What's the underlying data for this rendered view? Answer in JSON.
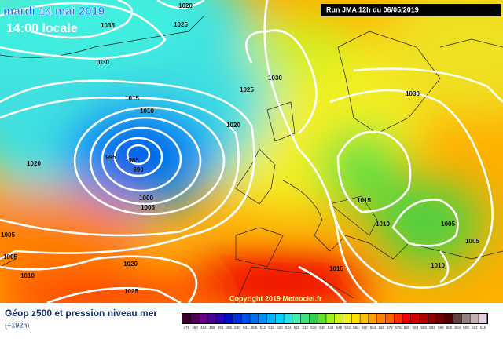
{
  "header": {
    "date": "mardi 14 mai 2019",
    "time": "14:00 locale",
    "run": "Run JMA 12h du 06/05/2019"
  },
  "isobar_labels": [
    "1020",
    "1035",
    "1025",
    "1030",
    "1015",
    "1010",
    "1025",
    "1030",
    "1020",
    "1030",
    "995",
    "985",
    "990",
    "1020",
    "1000",
    "1005",
    "1015",
    "1010",
    "1005",
    "1005",
    "1005",
    "1005",
    "1010",
    "1020",
    "1025",
    "1015",
    "1010"
  ],
  "copyright": "Copyright 2019 Meteociel.fr",
  "legend": {
    "title": "Géop z500 et pression niveau mer",
    "lead": "(+192h)",
    "scale": [
      {
        "value": 476,
        "color": "#3a0030"
      },
      {
        "value": 480,
        "color": "#50005a"
      },
      {
        "value": 484,
        "color": "#6a0088"
      },
      {
        "value": 488,
        "color": "#4b0096"
      },
      {
        "value": 492,
        "color": "#2a00b0"
      },
      {
        "value": 496,
        "color": "#0010c0"
      },
      {
        "value": 500,
        "color": "#0030d8"
      },
      {
        "value": 504,
        "color": "#0050e8"
      },
      {
        "value": 508,
        "color": "#0070f0"
      },
      {
        "value": 512,
        "color": "#0090f8"
      },
      {
        "value": 516,
        "color": "#00b0ff"
      },
      {
        "value": 520,
        "color": "#00d0ff"
      },
      {
        "value": 524,
        "color": "#30e0e0"
      },
      {
        "value": 528,
        "color": "#40f0b0"
      },
      {
        "value": 532,
        "color": "#40e080"
      },
      {
        "value": 536,
        "color": "#30d050"
      },
      {
        "value": 540,
        "color": "#60e030"
      },
      {
        "value": 544,
        "color": "#a0f020"
      },
      {
        "value": 548,
        "color": "#d0f020"
      },
      {
        "value": 552,
        "color": "#f0f020"
      },
      {
        "value": 556,
        "color": "#ffe000"
      },
      {
        "value": 560,
        "color": "#ffc000"
      },
      {
        "value": 564,
        "color": "#ffa000"
      },
      {
        "value": 568,
        "color": "#ff8000"
      },
      {
        "value": 572,
        "color": "#ff6000"
      },
      {
        "value": 576,
        "color": "#ff3000"
      },
      {
        "value": 580,
        "color": "#f00000"
      },
      {
        "value": 584,
        "color": "#d00000"
      },
      {
        "value": 588,
        "color": "#b00000"
      },
      {
        "value": 592,
        "color": "#900000"
      },
      {
        "value": 596,
        "color": "#700000"
      },
      {
        "value": 600,
        "color": "#500000"
      },
      {
        "value": 604,
        "color": "#604040"
      },
      {
        "value": 608,
        "color": "#908080"
      },
      {
        "value": 612,
        "color": "#c0b0b0"
      },
      {
        "value": 616,
        "color": "#e0d0e0"
      }
    ]
  }
}
